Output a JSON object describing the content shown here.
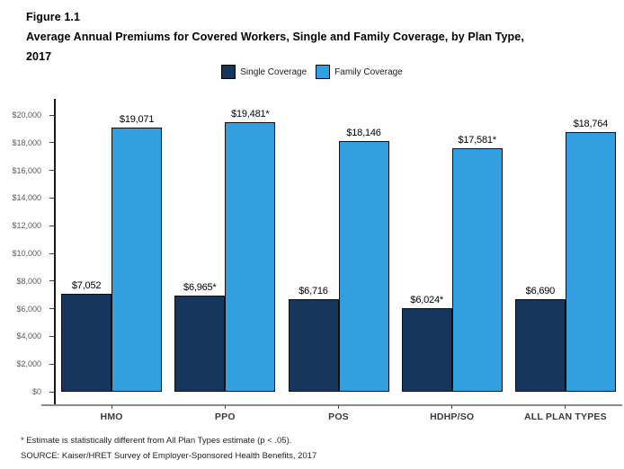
{
  "title": {
    "figure_label": "Figure 1.1",
    "line1": "Average Annual Premiums for Covered Workers, Single and Family Coverage, by Plan Type,",
    "line2": "2017"
  },
  "legend": [
    {
      "label": "Single Coverage",
      "color": "#17365D"
    },
    {
      "label": "Family Coverage",
      "color": "#319FE0"
    }
  ],
  "chart_data": {
    "type": "bar",
    "title": "Average Annual Premiums for Covered Workers, Single and Family Coverage, by Plan Type, 2017",
    "categories": [
      "HMO",
      "PPO",
      "POS",
      "HDHP/SO",
      "ALL PLAN TYPES"
    ],
    "series": [
      {
        "name": "Single Coverage",
        "color": "#17365D",
        "values": [
          7052,
          6965,
          6716,
          6024,
          6690
        ],
        "labels": [
          "$7,052",
          "$6,965*",
          "$6,716",
          "$6,024*",
          "$6,690"
        ]
      },
      {
        "name": "Family Coverage",
        "color": "#319FE0",
        "values": [
          19071,
          19481,
          18146,
          17581,
          18764
        ],
        "labels": [
          "$19,071",
          "$19,481*",
          "$18,146",
          "$17,581*",
          "$18,764"
        ]
      }
    ],
    "xlabel": "",
    "ylabel": "",
    "ylim": [
      0,
      20000
    ],
    "ytick_step": 2000,
    "ytick_labels": [
      "$0",
      "$2,000",
      "$4,000",
      "$6,000",
      "$8,000",
      "$10,000",
      "$12,000",
      "$14,000",
      "$16,000",
      "$18,000",
      "$20,000"
    ],
    "grid": false,
    "legend_position": "top-center",
    "annotation_note": "* denotes estimate statistically different from All Plan Types"
  },
  "footnotes": [
    "* Estimate is statistically different from All Plan Types estimate (p < .05).",
    "SOURCE: Kaiser/HRET Survey of Employer-Sponsored Health Benefits, 2017"
  ]
}
